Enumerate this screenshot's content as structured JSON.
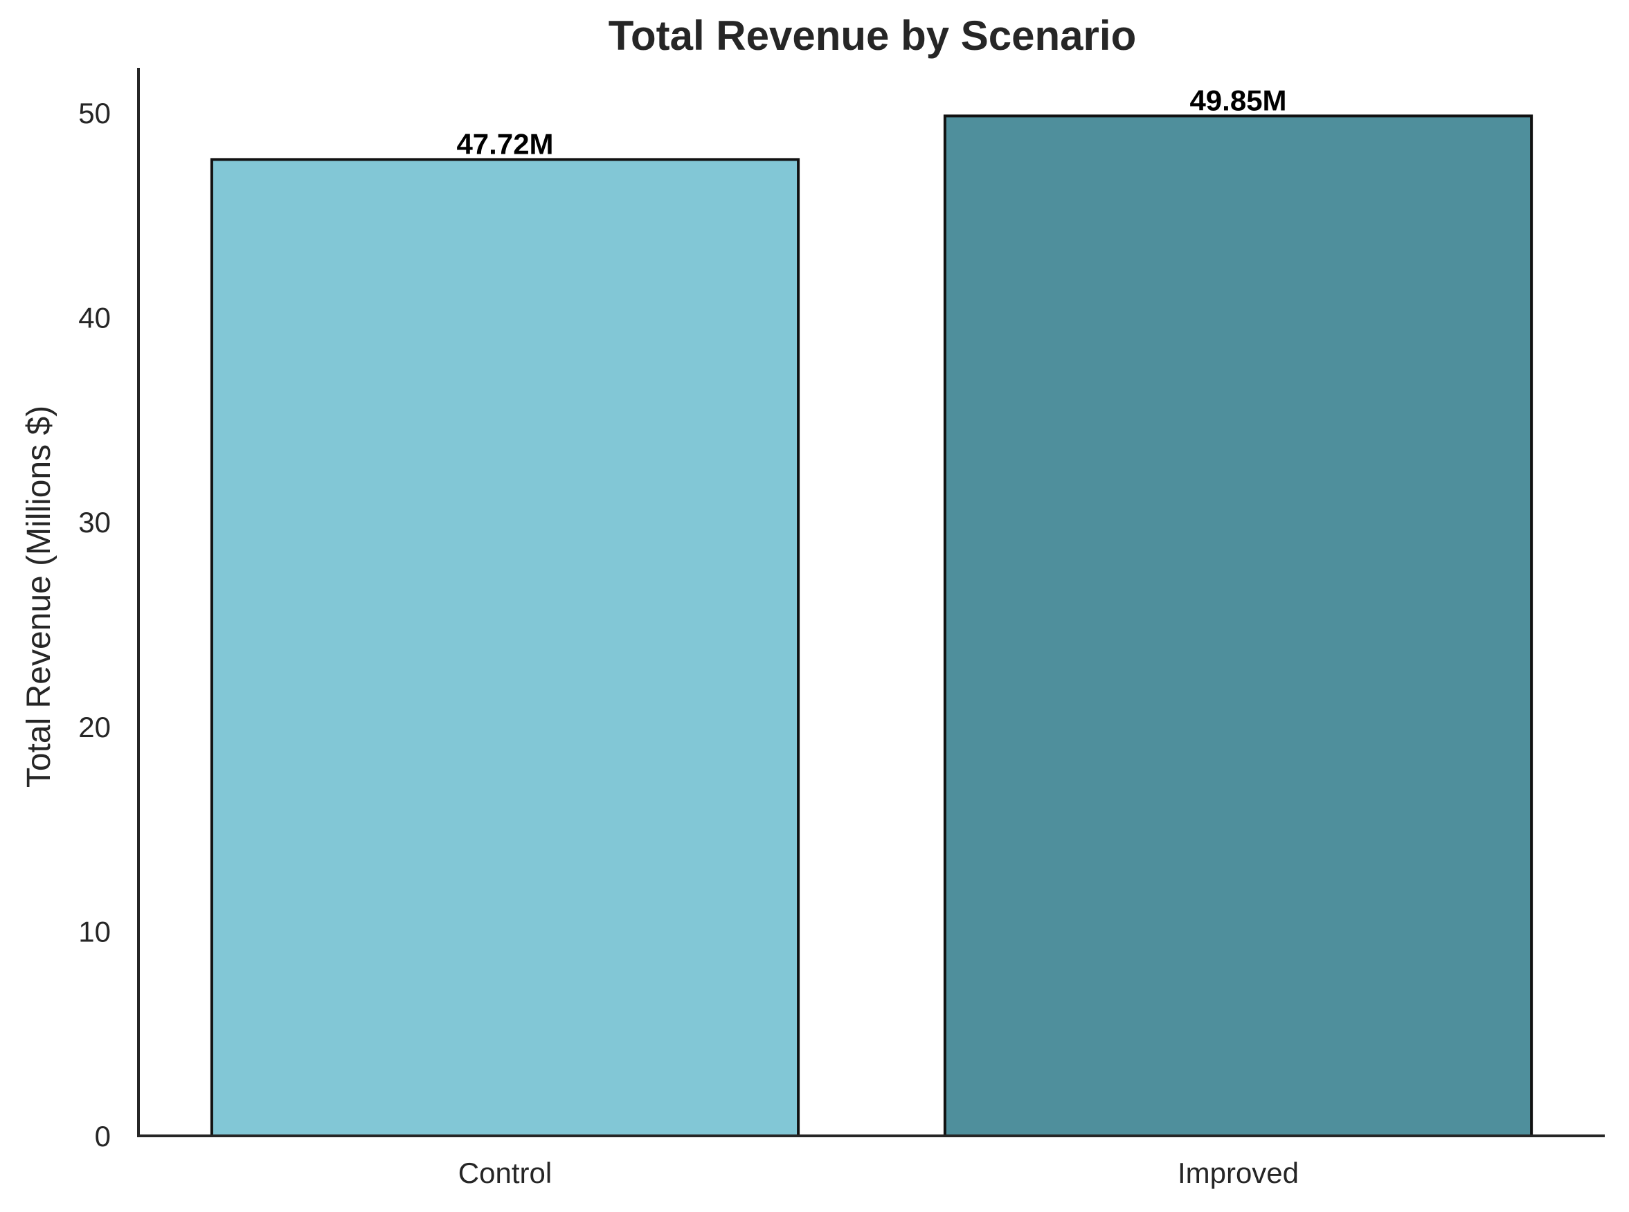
{
  "chart_data": {
    "type": "bar",
    "title": "Total Revenue by Scenario",
    "xlabel": "",
    "ylabel": "Total Revenue (Millions $)",
    "categories": [
      "Control",
      "Improved"
    ],
    "values": [
      47.72,
      49.85
    ],
    "data_labels": [
      "47.72M",
      "49.85M"
    ],
    "bar_colors": [
      "#82C7D6",
      "#4F8F9C"
    ],
    "edge_color": "#111111",
    "ylim": [
      0,
      52.2
    ],
    "yticks": [
      0,
      10,
      20,
      30,
      40,
      50
    ],
    "grid": false,
    "legend": "none"
  }
}
